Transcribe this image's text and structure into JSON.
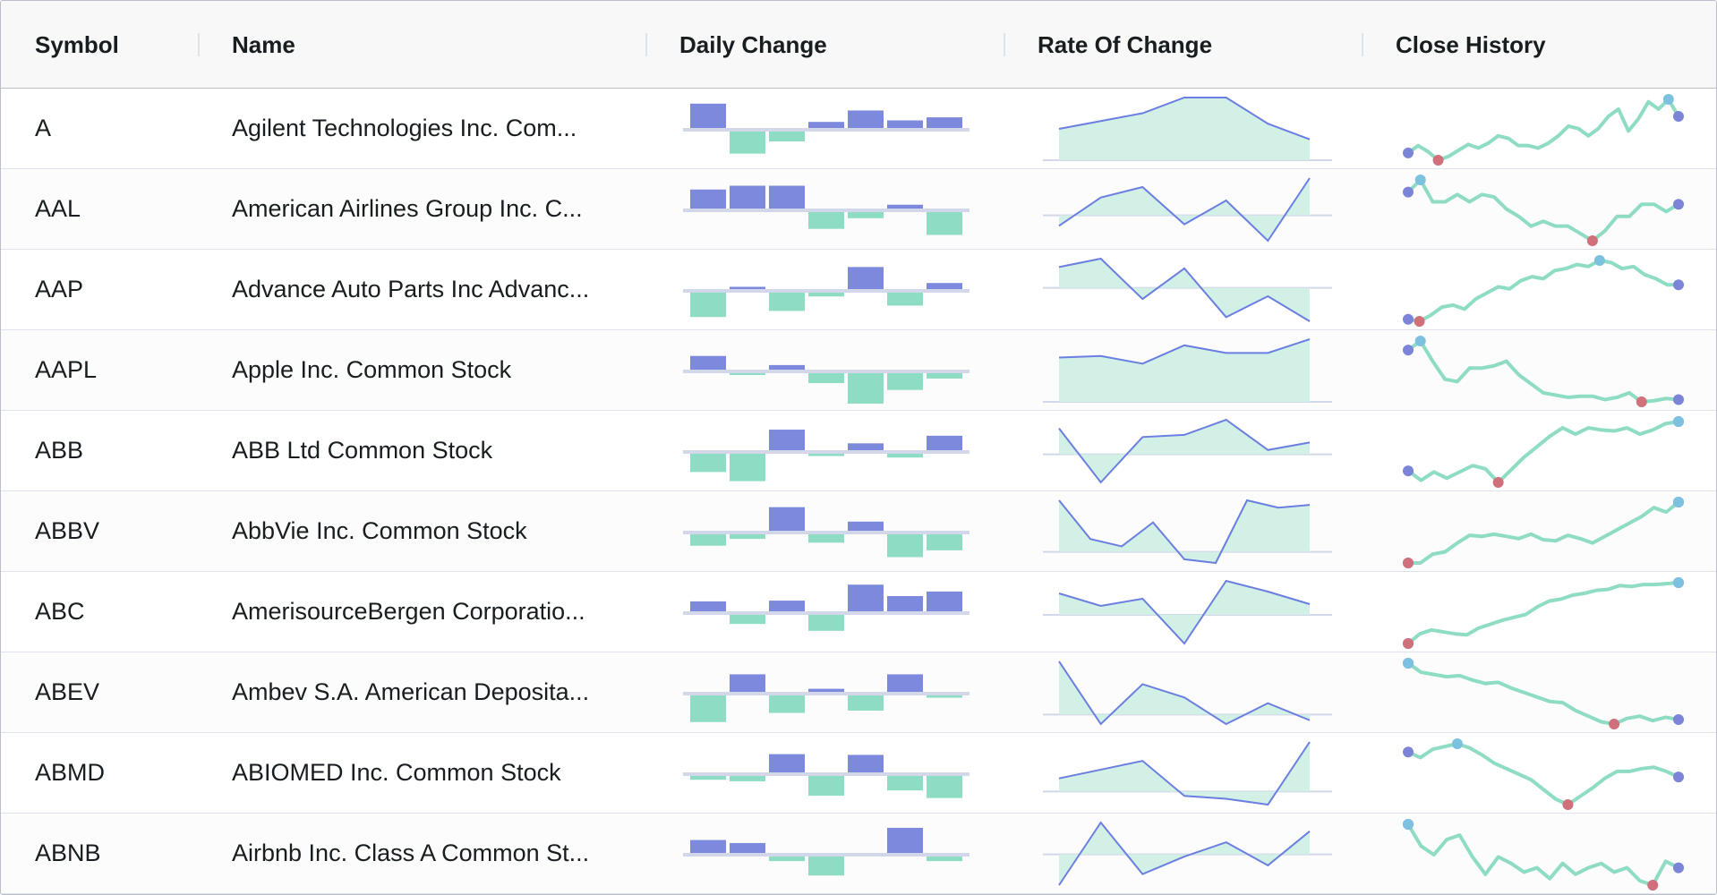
{
  "columns": {
    "symbol": "Symbol",
    "name": "Name",
    "daily_change": "Daily Change",
    "rate_of_change": "Rate Of Change",
    "close_history": "Close History"
  },
  "colors": {
    "bar_positive": "#7c89dc",
    "bar_negative": "#8fdcc5",
    "area_fill": "#d2f0e6",
    "line_stroke": "#6a7fe0",
    "history_line": "#8fdcc5",
    "marker_first_last": "#7b84d6",
    "marker_min": "#d0707a",
    "marker_max": "#7cc1e0",
    "axis": "#d3d7ea"
  },
  "rows": [
    {
      "symbol": "A",
      "name": "Agilent Technologies Inc. Com...",
      "daily_change": [
        3.2,
        -2.9,
        -1.3,
        0.8,
        2.3,
        1.0,
        1.4
      ],
      "rate_of_change": [
        0.6,
        0.75,
        0.9,
        1.2,
        1.2,
        0.7,
        0.4
      ],
      "close_history": [
        0.3,
        0.6,
        0.35,
        0.0,
        0.15,
        0.4,
        0.65,
        0.5,
        0.7,
        1.0,
        0.9,
        0.6,
        0.6,
        0.5,
        0.7,
        1.0,
        1.4,
        1.3,
        1.0,
        1.3,
        1.8,
        2.1,
        1.2,
        1.7,
        2.4,
        2.1,
        2.5,
        1.8
      ]
    },
    {
      "symbol": "AAL",
      "name": "American Airlines Group Inc. C...",
      "daily_change": [
        2.5,
        3.0,
        3.0,
        -2.2,
        -0.8,
        0.5,
        -3.0
      ],
      "rate_of_change": [
        -0.35,
        0.6,
        0.95,
        -0.3,
        0.5,
        -0.85,
        1.25
      ],
      "close_history": [
        2.0,
        2.5,
        1.6,
        1.6,
        1.9,
        1.6,
        1.9,
        1.8,
        1.3,
        1.0,
        0.6,
        0.8,
        0.6,
        0.6,
        0.3,
        0.0,
        0.4,
        1.0,
        1.0,
        1.5,
        1.5,
        1.2,
        1.5
      ]
    },
    {
      "symbol": "AAP",
      "name": "Advance Auto Parts Inc Advanc...",
      "daily_change": [
        -3.2,
        0.3,
        -2.4,
        -0.5,
        2.9,
        -1.7,
        0.8
      ],
      "rate_of_change": [
        0.75,
        1.05,
        -0.4,
        0.7,
        -1.05,
        -0.3,
        -1.2
      ],
      "close_history": [
        0.0,
        -0.1,
        0.2,
        0.6,
        0.7,
        0.5,
        1.0,
        1.3,
        1.6,
        1.5,
        1.9,
        2.1,
        2.0,
        2.4,
        2.5,
        2.7,
        2.6,
        2.9,
        2.8,
        2.5,
        2.6,
        2.2,
        2.0,
        1.7,
        1.7
      ]
    },
    {
      "symbol": "AAPL",
      "name": "Apple Inc. Common Stock",
      "daily_change": [
        1.8,
        -0.2,
        0.6,
        -1.3,
        -4.0,
        -2.2,
        -0.7
      ],
      "rate_of_change": [
        1.45,
        1.5,
        1.25,
        1.85,
        1.6,
        1.6,
        2.05
      ],
      "close_history": [
        2.3,
        2.7,
        1.8,
        1.0,
        0.9,
        1.5,
        1.5,
        1.6,
        1.8,
        1.2,
        0.8,
        0.4,
        0.3,
        0.2,
        0.25,
        0.25,
        0.1,
        0.2,
        0.4,
        0.0,
        0.05,
        0.15,
        0.1
      ]
    },
    {
      "symbol": "ABB",
      "name": "ABB Ltd Common Stock",
      "daily_change": [
        -2.4,
        -3.6,
        2.7,
        -0.3,
        0.9,
        -0.5,
        1.9
      ],
      "rate_of_change": [
        1.2,
        -1.3,
        0.8,
        0.9,
        1.6,
        0.2,
        0.55
      ],
      "close_history": [
        0.55,
        0.1,
        0.5,
        0.2,
        0.5,
        0.8,
        0.65,
        0.0,
        0.6,
        1.2,
        1.7,
        2.2,
        2.6,
        2.3,
        2.6,
        2.5,
        2.45,
        2.6,
        2.3,
        2.5,
        2.8,
        2.9
      ]
    },
    {
      "symbol": "ABBV",
      "name": "AbbVie Inc. Common Stock",
      "daily_change": [
        -1.5,
        -0.6,
        3.1,
        -1.1,
        1.2,
        -3.0,
        -2.1
      ],
      "rate_of_change": [
        2.8,
        0.7,
        0.3,
        1.6,
        -0.4,
        -0.6,
        2.8,
        2.4,
        2.55
      ],
      "close_history": [
        0.0,
        0.0,
        0.4,
        0.5,
        0.9,
        1.25,
        1.2,
        1.3,
        1.2,
        1.1,
        1.3,
        1.05,
        1.0,
        1.25,
        1.1,
        0.9,
        1.2,
        1.5,
        1.8,
        2.1,
        2.5,
        2.3,
        2.75
      ]
    },
    {
      "symbol": "ABC",
      "name": "AmerisourceBergen Corporatio...",
      "daily_change": [
        1.3,
        -1.2,
        1.4,
        -2.1,
        3.5,
        2.0,
        2.6
      ],
      "rate_of_change": [
        0.6,
        0.25,
        0.45,
        -0.8,
        0.95,
        0.65,
        0.3
      ],
      "close_history": [
        0.0,
        0.5,
        0.7,
        0.6,
        0.5,
        0.45,
        0.8,
        1.0,
        1.2,
        1.35,
        1.5,
        1.9,
        2.2,
        2.3,
        2.5,
        2.6,
        2.75,
        2.8,
        3.0,
        2.95,
        3.05,
        3.05,
        3.1,
        3.15
      ]
    },
    {
      "symbol": "ABEV",
      "name": "Ambev S.A. American Deposita...",
      "daily_change": [
        -3.5,
        2.3,
        -2.3,
        0.4,
        -2.0,
        2.3,
        -0.3
      ],
      "rate_of_change": [
        1.4,
        -0.25,
        0.8,
        0.45,
        -0.25,
        0.3,
        -0.15
      ],
      "close_history": [
        2.7,
        2.3,
        2.2,
        2.1,
        2.15,
        1.95,
        1.8,
        1.85,
        1.6,
        1.4,
        1.2,
        1.0,
        0.95,
        0.6,
        0.35,
        0.1,
        0.0,
        0.25,
        0.35,
        0.15,
        0.3,
        0.2
      ]
    },
    {
      "symbol": "ABMD",
      "name": "ABIOMED Inc. Common Stock",
      "daily_change": [
        -0.5,
        -0.7,
        2.4,
        -2.6,
        2.3,
        -1.9,
        -2.9
      ],
      "rate_of_change": [
        0.45,
        0.75,
        1.05,
        -0.15,
        -0.25,
        -0.45,
        1.7
      ],
      "close_history": [
        1.9,
        1.7,
        2.0,
        2.1,
        2.2,
        2.05,
        1.8,
        1.5,
        1.3,
        1.1,
        0.9,
        0.55,
        0.2,
        0.0,
        0.3,
        0.6,
        0.95,
        1.2,
        1.2,
        1.3,
        1.35,
        1.2,
        1.0
      ]
    },
    {
      "symbol": "ABNB",
      "name": "Airbnb Inc. Class A Common St...",
      "daily_change": [
        1.7,
        1.3,
        -0.6,
        -2.5,
        0.0,
        3.3,
        -0.6
      ],
      "rate_of_change": [
        -1.4,
        1.45,
        -0.9,
        -0.1,
        0.55,
        -0.5,
        1.05
      ],
      "close_history": [
        2.8,
        1.8,
        1.4,
        2.1,
        2.3,
        1.3,
        0.5,
        1.3,
        1.0,
        0.6,
        0.8,
        0.3,
        1.0,
        0.5,
        0.8,
        1.0,
        0.6,
        0.8,
        0.2,
        0.0,
        1.1,
        0.8
      ]
    }
  ]
}
